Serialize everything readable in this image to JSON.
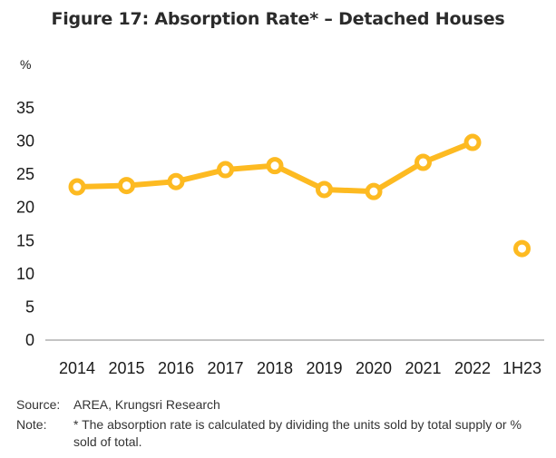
{
  "chart_data": {
    "type": "line",
    "title": "Figure 17: Absorption Rate* – Detached Houses",
    "ylabel": "%",
    "xlabel": "",
    "ylim": [
      0,
      35
    ],
    "yticks": [
      "0",
      "5",
      "10",
      "15",
      "20",
      "25",
      "30",
      "35"
    ],
    "ytick_values": [
      0,
      5,
      10,
      15,
      20,
      25,
      30,
      35
    ],
    "categories": [
      "2014",
      "2015",
      "2016",
      "2017",
      "2018",
      "2019",
      "2020",
      "2021",
      "2022",
      "1H23"
    ],
    "series": [
      {
        "name": "Absorption Rate",
        "color": "#FDBA21",
        "values": [
          23.1,
          23.3,
          23.9,
          25.7,
          26.3,
          22.7,
          22.4,
          26.8,
          29.8,
          13.8
        ],
        "connected_through_index": 8,
        "marker": "hollow-circle"
      }
    ],
    "grid": false,
    "legend": "none"
  },
  "footer": {
    "source_label": "Source:",
    "source_text": "AREA, Krungsri Research",
    "note_label": "Note:",
    "note_text": "* The absorption rate is calculated by dividing the units sold by total supply or % sold of total."
  }
}
